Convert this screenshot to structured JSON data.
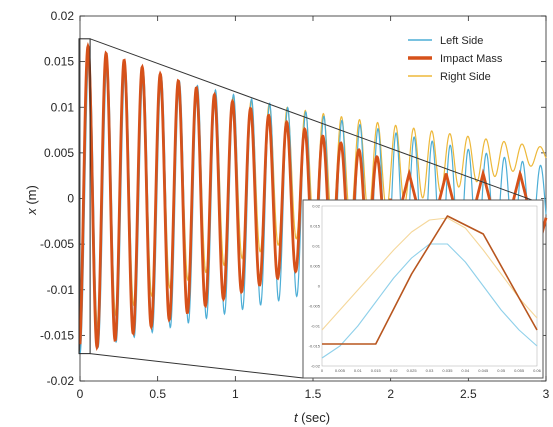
{
  "chart_data": [
    {
      "type": "line",
      "xlabel_italic": "t",
      "xlabel_rest": " (sec)",
      "ylabel_italic": "x",
      "ylabel_rest": " (m)",
      "xlim": [
        0,
        3
      ],
      "ylim": [
        -0.02,
        0.02
      ],
      "xticks": [
        0,
        0.5,
        1,
        1.5,
        2,
        2.5,
        3
      ],
      "xtick_labels": [
        "0",
        "0.5",
        "1",
        "1.5",
        "2",
        "2.5",
        "3"
      ],
      "yticks": [
        -0.02,
        -0.015,
        -0.01,
        -0.005,
        0,
        0.005,
        0.01,
        0.015,
        0.02
      ],
      "ytick_labels": [
        "-0.02",
        "-0.015",
        "-0.01",
        "-0.005",
        "0",
        "0.005",
        "0.01",
        "0.015",
        "0.02"
      ],
      "legend_position": "top-right",
      "series": [
        {
          "name": "Left Side",
          "color": "#4daed6",
          "amplitude_start": 0.0165,
          "amplitude_end": 0.004,
          "frequency_hz": 8.6,
          "offset": -0.0005
        },
        {
          "name": "Impact Mass",
          "color": "#d6511a",
          "amplitude_start": 0.017,
          "amplitude_end": 0.0015,
          "frequency_hz": 8.6,
          "late_frequency_hz": 4.2,
          "late_start": 2.0
        },
        {
          "name": "Right Side",
          "color": "#edb83a",
          "amplitude_start": 0.016,
          "amplitude_end": 0.0008,
          "frequency_hz": 8.6,
          "offset_end": 0.0048
        }
      ],
      "zoom_window": {
        "x": [
          0,
          0.065
        ],
        "y": [
          -0.017,
          0.0175
        ]
      }
    },
    {
      "type": "line",
      "role": "inset",
      "xlim": [
        0,
        0.06
      ],
      "ylim": [
        -0.02,
        0.02
      ],
      "xtick_labels": [
        "0",
        "0.005",
        "0.01",
        "0.015",
        "0.02",
        "0.025",
        "0.03",
        "0.035",
        "0.04",
        "0.045",
        "0.05",
        "0.055",
        "0.06"
      ],
      "ytick_labels": [
        "0.02",
        "0.015",
        "0.01",
        "0.005",
        "0",
        "-0.005",
        "-0.01",
        "-0.015",
        "-0.02"
      ],
      "series": [
        {
          "name": "Left Side",
          "color": "#8fd0ea",
          "x": [
            0,
            0.005,
            0.01,
            0.015,
            0.02,
            0.025,
            0.03,
            0.035,
            0.04,
            0.045,
            0.05,
            0.055,
            0.06
          ],
          "y": [
            -0.018,
            -0.015,
            -0.01,
            -0.004,
            0.002,
            0.007,
            0.0105,
            0.0105,
            0.006,
            0.0,
            -0.006,
            -0.011,
            -0.015
          ]
        },
        {
          "name": "Impact Mass",
          "color": "#b8561f",
          "x": [
            0,
            0.005,
            0.01,
            0.015,
            0.025,
            0.035,
            0.045,
            0.06
          ],
          "y": [
            -0.0145,
            -0.0145,
            -0.0145,
            -0.0145,
            0.003,
            0.0175,
            0.013,
            -0.011
          ]
        },
        {
          "name": "Right Side",
          "color": "#f5d79a",
          "x": [
            0,
            0.005,
            0.01,
            0.015,
            0.02,
            0.025,
            0.03,
            0.035,
            0.04,
            0.045,
            0.05,
            0.055,
            0.06
          ],
          "y": [
            -0.011,
            -0.006,
            -0.001,
            0.004,
            0.009,
            0.0135,
            0.0165,
            0.017,
            0.0145,
            0.009,
            0.003,
            -0.003,
            -0.008
          ]
        }
      ]
    }
  ]
}
